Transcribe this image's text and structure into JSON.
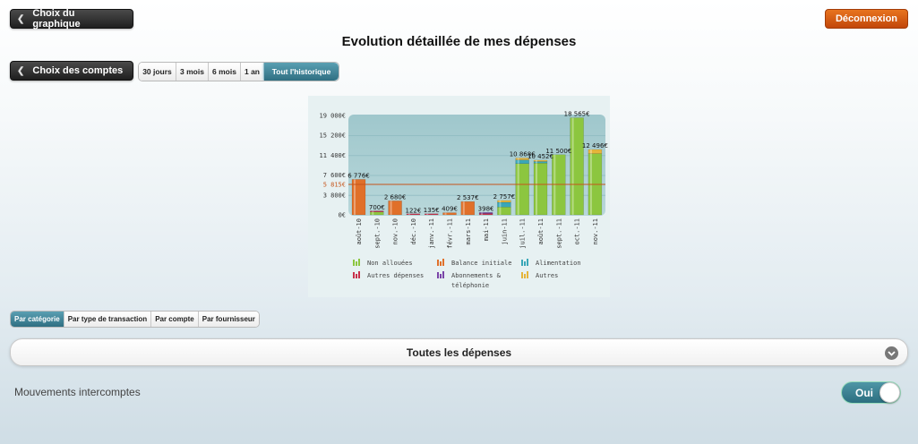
{
  "header": {
    "back_chart_label": "Choix du graphique",
    "logout_label": "Déconnexion",
    "title": "Evolution détaillée de mes dépenses",
    "back_accounts_label": "Choix des comptes"
  },
  "period_tabs": [
    {
      "label": "30 jours",
      "active": false
    },
    {
      "label": "3 mois",
      "active": false
    },
    {
      "label": "6 mois",
      "active": false
    },
    {
      "label": "1 an",
      "active": false
    },
    {
      "label": "Tout l'historique",
      "active": true
    }
  ],
  "view_tabs": [
    {
      "label": "Par catégorie",
      "active": true
    },
    {
      "label": "Par type de transaction",
      "active": false
    },
    {
      "label": "Par compte",
      "active": false
    },
    {
      "label": "Par fournisseur",
      "active": false
    }
  ],
  "filter": {
    "label": "Toutes les dépenses",
    "icon": "chevron-down-icon"
  },
  "interaccount": {
    "label": "Mouvements intercomptes",
    "toggle_label": "Oui",
    "toggle_on": true
  },
  "colors": {
    "accent": "#2f6f82",
    "logout": "#d85b12",
    "green": "#7fbf3f",
    "orange": "#e06a2a",
    "reference_line": "#c6541a"
  },
  "chart_data": {
    "type": "bar",
    "title": "",
    "xlabel": "",
    "ylabel": "",
    "ylim": [
      0,
      19000
    ],
    "yticks": [
      0,
      3800,
      7600,
      11400,
      15200,
      19000
    ],
    "ytick_labels": [
      "0€",
      "3 800€",
      "7 600€",
      "11 400€",
      "15 200€",
      "19 000€"
    ],
    "reference_line": {
      "value": 5815,
      "label": "5 815€"
    },
    "categories": [
      "août-10",
      "sept.-10",
      "nov.-10",
      "déc.-10",
      "janv.-11",
      "févr.-11",
      "mars-11",
      "mai-11",
      "juin-11",
      "juil.-11",
      "août-11",
      "sept.-11",
      "oct.-11",
      "nov.-11"
    ],
    "totals": [
      6776,
      700,
      2680,
      122,
      135,
      409,
      2537,
      398,
      2757,
      10868,
      10452,
      11500,
      18565,
      12496
    ],
    "total_labels": [
      "6 776€",
      "700€",
      "2 680€",
      "122€",
      "135€",
      "409€",
      "2 537€",
      "398€",
      "2 757€",
      "10 868€",
      "10 452€",
      "11 500€",
      "18 565€",
      "12 496€"
    ],
    "series": [
      {
        "name": "Non allouées",
        "color": "#8cc63f",
        "values": [
          0,
          550,
          0,
          0,
          0,
          0,
          0,
          0,
          1500,
          9800,
          9900,
          11500,
          18565,
          11700
        ]
      },
      {
        "name": "Balance initiale",
        "color": "#e0702a",
        "values": [
          6776,
          0,
          2680,
          0,
          0,
          409,
          2537,
          0,
          0,
          0,
          0,
          0,
          0,
          0
        ]
      },
      {
        "name": "Alimentation",
        "color": "#3aa7b8",
        "values": [
          0,
          0,
          0,
          0,
          0,
          0,
          0,
          0,
          900,
          700,
          300,
          0,
          0,
          0
        ]
      },
      {
        "name": "Autres dépenses",
        "color": "#c8304a",
        "values": [
          0,
          150,
          0,
          122,
          135,
          0,
          0,
          250,
          0,
          0,
          0,
          0,
          0,
          0
        ]
      },
      {
        "name": "Abonnements & téléphonie",
        "color": "#7a44a8",
        "values": [
          0,
          0,
          0,
          0,
          0,
          0,
          0,
          148,
          0,
          0,
          0,
          0,
          0,
          0
        ]
      },
      {
        "name": "Autres",
        "color": "#e5b53b",
        "values": [
          0,
          0,
          0,
          0,
          0,
          0,
          0,
          0,
          357,
          368,
          252,
          0,
          0,
          796
        ]
      }
    ],
    "legend_placement": "bottom",
    "grid": true
  }
}
